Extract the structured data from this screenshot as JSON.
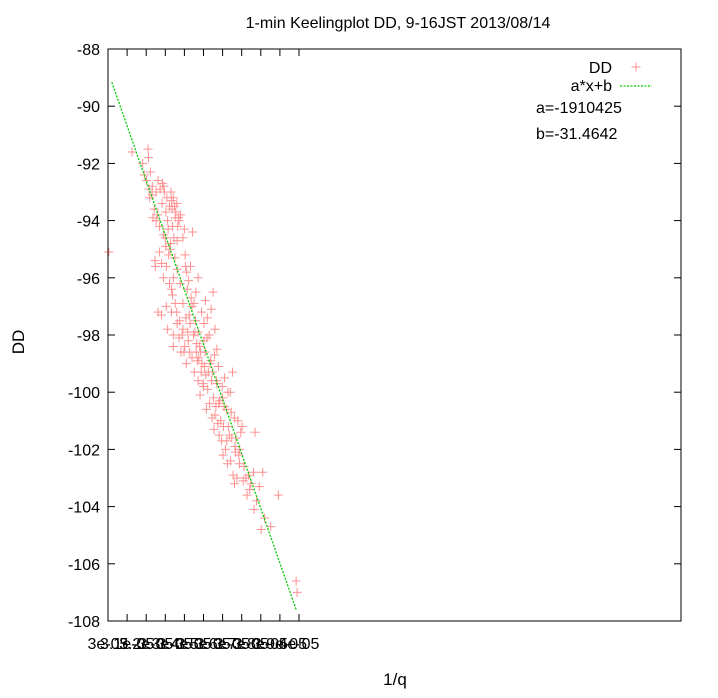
{
  "chart_data": {
    "type": "scatter",
    "title": "1-min Keelingplot DD, 9-16JST 2013/08/14",
    "xlabel": "1/q",
    "ylabel": "DD",
    "xlim": [
      3e-05,
      6e-05
    ],
    "ylim": [
      -108,
      -88
    ],
    "xticks": [
      3e-05,
      3.1e-05,
      3.2e-05,
      3.3e-05,
      3.4e-05,
      3.5e-05,
      3.6e-05,
      3.7e-05,
      3.8e-05,
      3.9e-05,
      4e-05
    ],
    "xtick_labels": [
      "3e-05",
      "3.1e-05",
      "3.2e-05",
      "3.3e-05",
      "3.4e-05",
      "3.5e-05",
      "3.6e-05",
      "3.7e-05",
      "3.8e-05",
      "3.9e-05",
      "4e-05"
    ],
    "yticks": [
      -88,
      -90,
      -92,
      -94,
      -96,
      -98,
      -100,
      -102,
      -104,
      -106,
      -108
    ],
    "ytick_labels": [
      "-88",
      "-90",
      "-92",
      "-94",
      "-96",
      "-98",
      "-100",
      "-102",
      "-104",
      "-106",
      "-108"
    ],
    "grid": false,
    "legend_position": "top-right",
    "series": [
      {
        "name": "DD",
        "kind": "points",
        "marker": "+",
        "color": "#ff9090",
        "points": [
          [
            3.004e-05,
            -95.1
          ],
          [
            3.126e-05,
            -91.6
          ],
          [
            3.182e-05,
            -92.0
          ],
          [
            3.19e-05,
            -92.4
          ],
          [
            3.21e-05,
            -91.5
          ],
          [
            3.212e-05,
            -91.8
          ],
          [
            3.222e-05,
            -92.3
          ],
          [
            3.232e-05,
            -92.8
          ],
          [
            3.218e-05,
            -93.2
          ],
          [
            3.242e-05,
            -93.6
          ],
          [
            3.252e-05,
            -93.0
          ],
          [
            3.262e-05,
            -92.6
          ],
          [
            3.235e-05,
            -93.9
          ],
          [
            3.248e-05,
            -95.6
          ],
          [
            3.246e-05,
            -95.4
          ],
          [
            3.27e-05,
            -94.2
          ],
          [
            3.273e-05,
            -92.9
          ],
          [
            3.283e-05,
            -93.4
          ],
          [
            3.292e-05,
            -92.8
          ],
          [
            3.303e-05,
            -93.7
          ],
          [
            3.29e-05,
            -94.5
          ],
          [
            3.302e-05,
            -94.9
          ],
          [
            3.312e-05,
            -94.0
          ],
          [
            3.322e-05,
            -93.5
          ],
          [
            3.332e-05,
            -93.3
          ],
          [
            3.335e-05,
            -93.6
          ],
          [
            3.342e-05,
            -93.2
          ],
          [
            3.348e-05,
            -93.5
          ],
          [
            3.352e-05,
            -93.9
          ],
          [
            3.36e-05,
            -93.4
          ],
          [
            3.338e-05,
            -94.2
          ],
          [
            3.328e-05,
            -94.8
          ],
          [
            3.318e-05,
            -95.2
          ],
          [
            3.306e-05,
            -95.6
          ],
          [
            3.322e-05,
            -96.2
          ],
          [
            3.338e-05,
            -96.6
          ],
          [
            3.35e-05,
            -95.3
          ],
          [
            3.362e-05,
            -94.7
          ],
          [
            3.372e-05,
            -94.0
          ],
          [
            3.38e-05,
            -93.8
          ],
          [
            3.392e-05,
            -94.6
          ],
          [
            3.404e-05,
            -95.2
          ],
          [
            3.412e-05,
            -95.8
          ],
          [
            3.422e-05,
            -96.1
          ],
          [
            3.432e-05,
            -95.6
          ],
          [
            3.442e-05,
            -94.4
          ],
          [
            3.352e-05,
            -96.9
          ],
          [
            3.332e-05,
            -97.2
          ],
          [
            3.312e-05,
            -97.8
          ],
          [
            3.305e-05,
            -97.0
          ],
          [
            3.28e-05,
            -97.3
          ],
          [
            3.262e-05,
            -97.2
          ],
          [
            3.342e-05,
            -98.0
          ],
          [
            3.342e-05,
            -98.4
          ],
          [
            3.362e-05,
            -97.6
          ],
          [
            3.372e-05,
            -98.1
          ],
          [
            3.382e-05,
            -98.6
          ],
          [
            3.392e-05,
            -97.8
          ],
          [
            3.402e-05,
            -98.4
          ],
          [
            3.41e-05,
            -99.0
          ],
          [
            3.42e-05,
            -98.2
          ],
          [
            3.43e-05,
            -97.6
          ],
          [
            3.44e-05,
            -97.0
          ],
          [
            3.44e-05,
            -98.8
          ],
          [
            3.452e-05,
            -99.3
          ],
          [
            3.462e-05,
            -98.6
          ],
          [
            3.472e-05,
            -97.9
          ],
          [
            3.48e-05,
            -98.4
          ],
          [
            3.492e-05,
            -99.0
          ],
          [
            3.502e-05,
            -98.2
          ],
          [
            3.472e-05,
            -99.6
          ],
          [
            3.482e-05,
            -100.1
          ],
          [
            3.5e-05,
            -99.8
          ],
          [
            3.45e-05,
            -96.9
          ],
          [
            3.46e-05,
            -96.5
          ],
          [
            3.472e-05,
            -96.0
          ],
          [
            3.49e-05,
            -97.2
          ],
          [
            3.502e-05,
            -97.6
          ],
          [
            3.51e-05,
            -96.8
          ],
          [
            3.52e-05,
            -97.4
          ],
          [
            3.53e-05,
            -98.0
          ],
          [
            3.54e-05,
            -97.1
          ],
          [
            3.55e-05,
            -96.5
          ],
          [
            3.56e-05,
            -97.8
          ],
          [
            3.57e-05,
            -98.5
          ],
          [
            3.512e-05,
            -99.4
          ],
          [
            3.522e-05,
            -99.9
          ],
          [
            3.532e-05,
            -100.4
          ],
          [
            3.542e-05,
            -99.6
          ],
          [
            3.552e-05,
            -100.2
          ],
          [
            3.56e-05,
            -100.8
          ],
          [
            3.57e-05,
            -99.7
          ],
          [
            3.58e-05,
            -100.4
          ],
          [
            3.59e-05,
            -101.0
          ],
          [
            3.6e-05,
            -100.2
          ],
          [
            3.61e-05,
            -99.5
          ],
          [
            3.62e-05,
            -100.6
          ],
          [
            3.63e-05,
            -101.2
          ],
          [
            3.64e-05,
            -100.0
          ],
          [
            3.652e-05,
            -99.3
          ],
          [
            3.662e-05,
            -100.9
          ],
          [
            3.67e-05,
            -101.6
          ],
          [
            3.68e-05,
            -101.0
          ],
          [
            3.69e-05,
            -102.0
          ],
          [
            3.582e-05,
            -101.5
          ],
          [
            3.602e-05,
            -102.2
          ],
          [
            3.622e-05,
            -101.7
          ],
          [
            3.642e-05,
            -102.4
          ],
          [
            3.662e-05,
            -103.2
          ],
          [
            3.702e-05,
            -101.2
          ],
          [
            3.712e-05,
            -102.6
          ],
          [
            3.722e-05,
            -103.0
          ],
          [
            3.742e-05,
            -103.4
          ],
          [
            3.762e-05,
            -102.8
          ],
          [
            3.77e-05,
            -101.4
          ],
          [
            3.792e-05,
            -103.3
          ],
          [
            3.802e-05,
            -104.8
          ],
          [
            3.81e-05,
            -102.8
          ],
          [
            3.852e-05,
            -104.7
          ],
          [
            3.892e-05,
            -103.6
          ],
          [
            3.985e-05,
            -106.6
          ],
          [
            3.99e-05,
            -107.0
          ],
          [
            3.252e-05,
            -94.0
          ],
          [
            3.202e-05,
            -92.6
          ],
          [
            3.26e-05,
            -93.8
          ],
          [
            3.3e-05,
            -94.6
          ],
          [
            3.315e-05,
            -94.3
          ],
          [
            3.325e-05,
            -95.0
          ],
          [
            3.345e-05,
            -94.6
          ],
          [
            3.362e-05,
            -95.7
          ],
          [
            3.378e-05,
            -96.2
          ],
          [
            3.392e-05,
            -96.9
          ],
          [
            3.408e-05,
            -97.4
          ],
          [
            3.418e-05,
            -97.9
          ],
          [
            3.428e-05,
            -98.6
          ],
          [
            3.448e-05,
            -98.0
          ],
          [
            3.458e-05,
            -97.5
          ],
          [
            3.468e-05,
            -98.9
          ],
          [
            3.488e-05,
            -99.3
          ],
          [
            3.498e-05,
            -99.7
          ],
          [
            3.508e-05,
            -98.6
          ],
          [
            3.518e-05,
            -98.1
          ],
          [
            3.538e-05,
            -98.9
          ],
          [
            3.548e-05,
            -99.3
          ],
          [
            3.558e-05,
            -98.7
          ],
          [
            3.568e-05,
            -99.6
          ],
          [
            3.578e-05,
            -99.1
          ],
          [
            3.598e-05,
            -99.8
          ],
          [
            3.608e-05,
            -100.5
          ],
          [
            3.628e-05,
            -100.0
          ],
          [
            3.648e-05,
            -101.6
          ],
          [
            3.668e-05,
            -102.1
          ],
          [
            3.688e-05,
            -102.5
          ],
          [
            3.708e-05,
            -103.1
          ],
          [
            3.728e-05,
            -103.6
          ],
          [
            3.748e-05,
            -103.2
          ],
          [
            3.778e-05,
            -103.8
          ],
          [
            3.82e-05,
            -104.4
          ],
          [
            3.355e-05,
            -93.7
          ],
          [
            3.365e-05,
            -94.2
          ],
          [
            3.37e-05,
            -93.9
          ],
          [
            3.33e-05,
            -93.0
          ],
          [
            3.308e-05,
            -93.2
          ],
          [
            3.295e-05,
            -93.0
          ],
          [
            3.285e-05,
            -92.7
          ],
          [
            3.23e-05,
            -93.1
          ],
          [
            3.215e-05,
            -92.9
          ],
          [
            3.4e-05,
            -94.3
          ],
          [
            3.405e-05,
            -95.6
          ],
          [
            3.415e-05,
            -96.4
          ],
          [
            3.425e-05,
            -97.3
          ],
          [
            3.435e-05,
            -96.7
          ],
          [
            3.455e-05,
            -97.9
          ],
          [
            3.465e-05,
            -98.3
          ],
          [
            3.475e-05,
            -98.8
          ],
          [
            3.485e-05,
            -98.6
          ],
          [
            3.505e-05,
            -99.1
          ],
          [
            3.515e-05,
            -100.6
          ],
          [
            3.525e-05,
            -99.3
          ],
          [
            3.535e-05,
            -99.0
          ],
          [
            3.545e-05,
            -100.9
          ],
          [
            3.555e-05,
            -101.3
          ],
          [
            3.565e-05,
            -100.5
          ],
          [
            3.575e-05,
            -101.1
          ],
          [
            3.585e-05,
            -100.3
          ],
          [
            3.595e-05,
            -101.7
          ],
          [
            3.605e-05,
            -101.2
          ],
          [
            3.615e-05,
            -102.0
          ],
          [
            3.625e-05,
            -102.5
          ],
          [
            3.635e-05,
            -101.5
          ],
          [
            3.645e-05,
            -100.7
          ],
          [
            3.655e-05,
            -102.9
          ],
          [
            3.665e-05,
            -101.9
          ],
          [
            3.675e-05,
            -103.0
          ],
          [
            3.685e-05,
            -102.2
          ],
          [
            3.695e-05,
            -101.4
          ],
          [
            3.735e-05,
            -102.9
          ],
          [
            3.765e-05,
            -104.1
          ],
          [
            3.342e-05,
            -96.0
          ],
          [
            3.332e-05,
            -96.4
          ],
          [
            3.27e-05,
            -95.1
          ],
          [
            3.28e-05,
            -95.5
          ],
          [
            3.29e-05,
            -96.0
          ],
          [
            3.36e-05,
            -97.2
          ],
          [
            3.375e-05,
            -97.5
          ],
          [
            3.388e-05,
            -98.0
          ],
          [
            3.398e-05,
            -98.6
          ]
        ]
      },
      {
        "name": "a*x+b",
        "kind": "line",
        "color": "#00cc00",
        "x": [
          3.02e-05,
          3.985e-05
        ],
        "y": [
          -89.16,
          -107.6
        ]
      }
    ],
    "fit_labels": [
      "a=-1910425",
      "b=-31.4642"
    ]
  }
}
